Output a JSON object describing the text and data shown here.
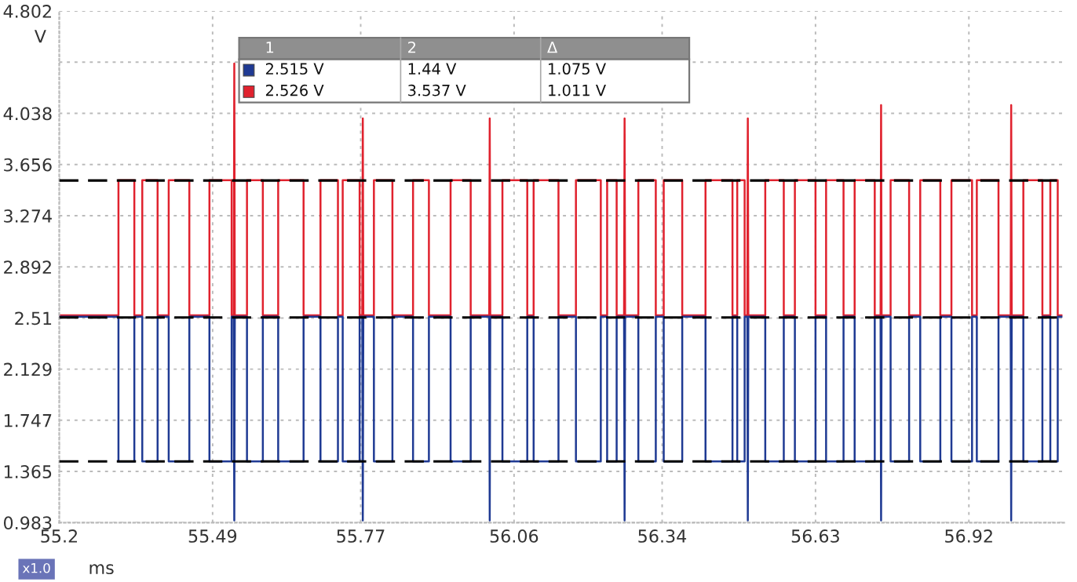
{
  "chart_data": {
    "type": "line",
    "xlabel": "ms",
    "ylabel": "V",
    "x": [
      55.2,
      55.312,
      55.312,
      55.342,
      55.342,
      55.357,
      55.357,
      55.386,
      55.386,
      55.407,
      55.407,
      55.446,
      55.446,
      55.484,
      55.484,
      55.526,
      55.526,
      55.53,
      55.531,
      55.532,
      55.555,
      55.555,
      55.585,
      55.585,
      55.614,
      55.614,
      55.662,
      55.662,
      55.694,
      55.694,
      55.727,
      55.727,
      55.736,
      55.736,
      55.768,
      55.768,
      55.773,
      55.774,
      55.775,
      55.795,
      55.795,
      55.83,
      55.83,
      55.869,
      55.869,
      55.899,
      55.899,
      55.94,
      55.94,
      55.978,
      55.978,
      56.013,
      56.014,
      56.015,
      56.038,
      56.038,
      56.085,
      56.085,
      56.097,
      56.097,
      56.144,
      56.144,
      56.177,
      56.177,
      56.224,
      56.224,
      56.236,
      56.236,
      56.254,
      56.254,
      56.268,
      56.269,
      56.27,
      56.295,
      56.295,
      56.328,
      56.328,
      56.343,
      56.343,
      56.378,
      56.378,
      56.422,
      56.422,
      56.473,
      56.473,
      56.482,
      56.482,
      56.496,
      56.496,
      56.501,
      56.502,
      56.503,
      56.535,
      56.535,
      56.57,
      56.57,
      56.591,
      56.591,
      56.63,
      56.63,
      56.65,
      56.65,
      56.683,
      56.683,
      56.704,
      56.704,
      56.742,
      56.742,
      56.753,
      56.754,
      56.755,
      56.772,
      56.772,
      56.807,
      56.807,
      56.828,
      56.828,
      56.866,
      56.866,
      56.887,
      56.887,
      56.926,
      56.926,
      56.935,
      56.935,
      56.976,
      56.976,
      56.999,
      57.0,
      57.001,
      57.023,
      57.023,
      57.059,
      57.059,
      57.074,
      57.074,
      57.088,
      57.088,
      57.095
    ],
    "series": [
      {
        "color": "#e0222e",
        "values": [
          2.53,
          2.53,
          3.54,
          3.54,
          2.53,
          2.53,
          3.54,
          3.54,
          2.53,
          2.53,
          3.54,
          3.54,
          2.53,
          2.53,
          3.54,
          3.54,
          2.53,
          2.53,
          4.41,
          2.53,
          2.53,
          3.54,
          3.54,
          2.53,
          2.53,
          3.54,
          3.54,
          2.53,
          2.53,
          3.54,
          3.54,
          2.53,
          2.53,
          3.54,
          3.54,
          2.53,
          2.53,
          4.0,
          2.53,
          2.53,
          3.54,
          3.54,
          2.53,
          2.53,
          3.54,
          3.54,
          2.53,
          2.53,
          3.54,
          3.54,
          2.53,
          2.53,
          4.0,
          2.53,
          2.53,
          3.54,
          3.54,
          2.53,
          2.53,
          3.54,
          3.54,
          2.53,
          2.53,
          3.54,
          3.54,
          2.53,
          2.53,
          3.54,
          3.54,
          2.53,
          2.53,
          4.0,
          2.53,
          2.53,
          3.54,
          3.54,
          2.53,
          2.53,
          3.54,
          3.54,
          2.53,
          2.53,
          3.54,
          3.54,
          2.53,
          2.53,
          3.54,
          3.54,
          2.53,
          2.53,
          4.0,
          2.53,
          2.53,
          3.54,
          3.54,
          2.53,
          2.53,
          3.54,
          3.54,
          2.53,
          2.53,
          3.54,
          3.54,
          2.53,
          2.53,
          3.54,
          3.54,
          2.53,
          2.53,
          4.1,
          2.53,
          2.53,
          3.54,
          3.54,
          2.53,
          2.53,
          3.54,
          3.54,
          2.53,
          2.53,
          3.54,
          3.54,
          2.53,
          2.53,
          3.54,
          3.54,
          2.53,
          2.53,
          4.1,
          2.53,
          2.53,
          3.54,
          3.54,
          2.53,
          2.53,
          3.54,
          3.54,
          2.53,
          2.53
        ]
      },
      {
        "color": "#1f3a93",
        "values": [
          2.52,
          2.52,
          1.44,
          1.44,
          2.52,
          2.52,
          1.44,
          1.44,
          2.52,
          2.52,
          1.44,
          1.44,
          2.52,
          2.52,
          1.44,
          1.44,
          2.52,
          2.52,
          1.0,
          2.52,
          2.52,
          1.44,
          1.44,
          2.52,
          2.52,
          1.44,
          1.44,
          2.52,
          2.52,
          1.44,
          1.44,
          2.52,
          2.52,
          1.44,
          1.44,
          2.52,
          2.52,
          1.0,
          2.52,
          2.52,
          1.44,
          1.44,
          2.52,
          2.52,
          1.44,
          1.44,
          2.52,
          2.52,
          1.44,
          1.44,
          2.52,
          2.52,
          1.0,
          2.52,
          2.52,
          1.44,
          1.44,
          2.52,
          2.52,
          1.44,
          1.44,
          2.52,
          2.52,
          1.44,
          1.44,
          2.52,
          2.52,
          1.44,
          1.44,
          2.52,
          2.52,
          1.0,
          2.52,
          2.52,
          1.44,
          1.44,
          2.52,
          2.52,
          1.44,
          1.44,
          2.52,
          2.52,
          1.44,
          1.44,
          2.52,
          2.52,
          1.44,
          1.44,
          2.52,
          2.52,
          1.0,
          2.52,
          2.52,
          1.44,
          1.44,
          2.52,
          2.52,
          1.44,
          1.44,
          2.52,
          2.52,
          1.44,
          1.44,
          2.52,
          2.52,
          1.44,
          1.44,
          2.52,
          2.52,
          1.0,
          2.52,
          2.52,
          1.44,
          1.44,
          2.52,
          2.52,
          1.44,
          1.44,
          2.52,
          2.52,
          1.44,
          1.44,
          2.52,
          2.52,
          1.44,
          1.44,
          2.52,
          2.52,
          1.0,
          2.52,
          2.52,
          1.44,
          1.44,
          2.52,
          2.52,
          1.44,
          1.44,
          2.52,
          2.52
        ]
      }
    ],
    "xlim": [
      55.2,
      57.1
    ],
    "xticks": [
      55.2,
      55.49,
      55.77,
      56.06,
      56.34,
      56.63,
      56.92
    ],
    "ylim": [
      0.983,
      4.802
    ],
    "yticks": [
      0.983,
      1.365,
      1.747,
      2.129,
      2.51,
      2.892,
      3.274,
      3.656,
      4.038,
      {
        "value": 4.42,
        "label": null
      },
      4.802
    ],
    "ref_lines": [
      {
        "axis": "y",
        "value": 3.537,
        "color": "#000000",
        "line_style": "dashed"
      },
      {
        "axis": "y",
        "value": 2.515,
        "color": "#000000",
        "line_style": "dashed"
      },
      {
        "axis": "y",
        "value": 1.44,
        "color": "#000000",
        "line_style": "dashed"
      }
    ],
    "annotations": [
      "x1.0",
      "1",
      "2",
      "Δ",
      "2.515 V",
      "1.44 V",
      "1.075 V",
      "2.526 V",
      "3.537 V",
      "1.011 V"
    ],
    "grid": true,
    "marker": "none",
    "line_style": "solid",
    "legend": false
  }
}
